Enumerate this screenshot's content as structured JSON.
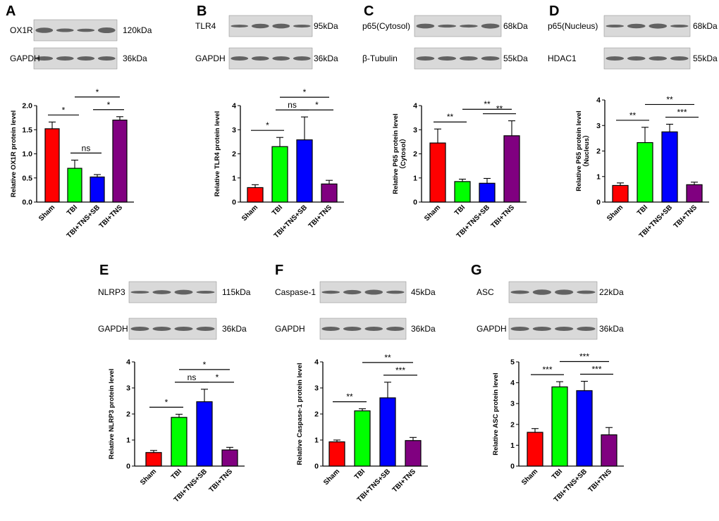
{
  "colors": {
    "sham": "#ff0000",
    "tbi": "#00ff00",
    "tbi_tns_sb": "#0000ff",
    "tbi_tns": "#800080"
  },
  "chart_data": [
    {
      "id": "A",
      "type": "bar",
      "title": "A",
      "blot": [
        {
          "label": "OX1R",
          "size": "120kDa"
        },
        {
          "label": "GAPDH",
          "size": "36kDa"
        }
      ],
      "ylabel": "Relative OX1R  protein level",
      "ylim": [
        0,
        2.0
      ],
      "yticks": [
        "0.0",
        "0.5",
        "1.0",
        "1.5",
        "2.0"
      ],
      "categories": [
        "Sham",
        "TBI",
        "TBI+TNS+SB",
        "TBI+TNS"
      ],
      "values": [
        1.52,
        0.7,
        0.52,
        1.7
      ],
      "errors": [
        0.14,
        0.17,
        0.05,
        0.07
      ],
      "comparisons": [
        {
          "a": 0,
          "b": 1,
          "label": "*"
        },
        {
          "a": 1,
          "b": 2,
          "label": "ns"
        },
        {
          "a": 2,
          "b": 3,
          "label": "*"
        },
        {
          "a": 1,
          "b": 3,
          "label": "*"
        }
      ]
    },
    {
      "id": "B",
      "type": "bar",
      "title": "B",
      "blot": [
        {
          "label": "TLR4",
          "size": "95kDa"
        },
        {
          "label": "GAPDH",
          "size": "36kDa"
        }
      ],
      "ylabel": "Relative TLR4 protein level",
      "ylim": [
        0,
        4
      ],
      "yticks": [
        "0",
        "1",
        "2",
        "3",
        "4"
      ],
      "categories": [
        "Sham",
        "TBI",
        "TBI+TNS+SB",
        "TBI+TNS"
      ],
      "values": [
        0.6,
        2.3,
        2.58,
        0.75
      ],
      "errors": [
        0.12,
        0.38,
        0.95,
        0.15
      ],
      "comparisons": [
        {
          "a": 0,
          "b": 1,
          "label": "*"
        },
        {
          "a": 1,
          "b": 2,
          "label": "ns"
        },
        {
          "a": 2,
          "b": 3,
          "label": "*"
        },
        {
          "a": 1,
          "b": 3,
          "label": "*"
        }
      ]
    },
    {
      "id": "C",
      "type": "bar",
      "title": "C",
      "blot": [
        {
          "label": "p65(Cytosol)",
          "size": "68kDa"
        },
        {
          "label": "β-Tubulin",
          "size": "55kDa"
        }
      ],
      "ylabel": "Relative P65 protein level",
      "ylabel2": "（Cytosol）",
      "ylim": [
        0,
        4
      ],
      "yticks": [
        "0",
        "1",
        "2",
        "3",
        "4"
      ],
      "categories": [
        "Sham",
        "TBI",
        "TBI+TNS+SB",
        "TBI+TNS"
      ],
      "values": [
        2.45,
        0.85,
        0.78,
        2.75
      ],
      "errors": [
        0.58,
        0.1,
        0.2,
        0.62
      ],
      "comparisons": [
        {
          "a": 0,
          "b": 1,
          "label": "**"
        },
        {
          "a": 1,
          "b": 3,
          "label": "**"
        },
        {
          "a": 2,
          "b": 3,
          "label": "**"
        }
      ]
    },
    {
      "id": "D",
      "type": "bar",
      "title": "D",
      "blot": [
        {
          "label": "p65(Nucleus)",
          "size": "68kDa"
        },
        {
          "label": "HDAC1",
          "size": "55kDa"
        }
      ],
      "ylabel": "Relative P65 protein level",
      "ylabel2": "（Nucleus）",
      "ylim": [
        0,
        4
      ],
      "yticks": [
        "0",
        "1",
        "2",
        "3",
        "4"
      ],
      "categories": [
        "Sham",
        "TBI",
        "TBI+TNS+SB",
        "TBI+TNS"
      ],
      "values": [
        0.65,
        2.33,
        2.75,
        0.68
      ],
      "errors": [
        0.1,
        0.6,
        0.3,
        0.1
      ],
      "comparisons": [
        {
          "a": 0,
          "b": 1,
          "label": "**"
        },
        {
          "a": 2,
          "b": 3,
          "label": "***"
        },
        {
          "a": 1,
          "b": 3,
          "label": "**"
        }
      ]
    },
    {
      "id": "E",
      "type": "bar",
      "title": "E",
      "blot": [
        {
          "label": "NLRP3",
          "size": "115kDa"
        },
        {
          "label": "GAPDH",
          "size": "36kDa"
        }
      ],
      "ylabel": "Relative NLRP3 protein level",
      "ylim": [
        0,
        4
      ],
      "yticks": [
        "0",
        "1",
        "2",
        "3",
        "4"
      ],
      "categories": [
        "Sham",
        "TBI",
        "TBI+TNS+SB",
        "TBI+TNS"
      ],
      "values": [
        0.52,
        1.87,
        2.47,
        0.62
      ],
      "errors": [
        0.08,
        0.12,
        0.48,
        0.1
      ],
      "comparisons": [
        {
          "a": 0,
          "b": 1,
          "label": "*"
        },
        {
          "a": 1,
          "b": 2,
          "label": "ns"
        },
        {
          "a": 2,
          "b": 3,
          "label": "*"
        },
        {
          "a": 1,
          "b": 3,
          "label": "*"
        }
      ]
    },
    {
      "id": "F",
      "type": "bar",
      "title": "F",
      "blot": [
        {
          "label": "Caspase-1",
          "size": "45kDa"
        },
        {
          "label": "GAPDH",
          "size": "36kDa"
        }
      ],
      "ylabel": "Relative Caspase-1  protein level",
      "ylim": [
        0,
        4
      ],
      "yticks": [
        "0",
        "1",
        "2",
        "3",
        "4"
      ],
      "categories": [
        "Sham",
        "TBI",
        "TBI+TNS+SB",
        "TBI+TNS"
      ],
      "values": [
        0.93,
        2.12,
        2.62,
        0.98
      ],
      "errors": [
        0.07,
        0.08,
        0.6,
        0.12
      ],
      "comparisons": [
        {
          "a": 0,
          "b": 1,
          "label": "**"
        },
        {
          "a": 2,
          "b": 3,
          "label": "***"
        },
        {
          "a": 1,
          "b": 3,
          "label": "**"
        }
      ]
    },
    {
      "id": "G",
      "type": "bar",
      "title": "G",
      "blot": [
        {
          "label": "ASC",
          "size": "22kDa"
        },
        {
          "label": "GAPDH",
          "size": "36kDa"
        }
      ],
      "ylabel": "Relative ASC protein level",
      "ylim": [
        0,
        5
      ],
      "yticks": [
        "0",
        "1",
        "2",
        "3",
        "4",
        "5"
      ],
      "categories": [
        "Sham",
        "TBI",
        "TBI+TNS+SB",
        "TBI+TNS"
      ],
      "values": [
        1.62,
        3.8,
        3.62,
        1.5
      ],
      "errors": [
        0.18,
        0.25,
        0.45,
        0.35
      ],
      "comparisons": [
        {
          "a": 0,
          "b": 1,
          "label": "***"
        },
        {
          "a": 2,
          "b": 3,
          "label": "***"
        },
        {
          "a": 1,
          "b": 3,
          "label": "***"
        }
      ]
    }
  ]
}
